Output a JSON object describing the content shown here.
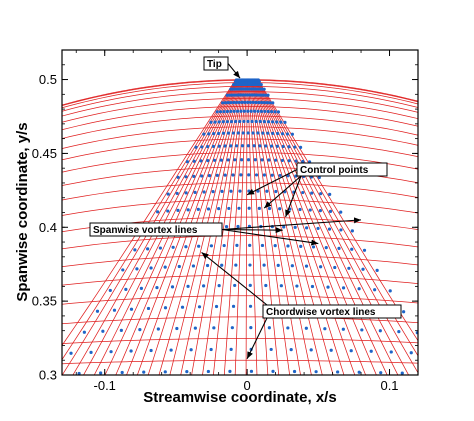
{
  "chart_data": {
    "type": "scatter",
    "xlabel": "Streamwise coordinate, x/s",
    "ylabel": "Spanwise coordinate, y/s",
    "xlim": [
      -0.13,
      0.12
    ],
    "ylim": [
      0.3,
      0.52
    ],
    "xticks": [
      -0.1,
      0,
      0.1
    ],
    "xtick_labels": [
      "-0.1",
      "0",
      "0.1"
    ],
    "yticks": [
      0.3,
      0.35,
      0.4,
      0.45,
      0.5
    ],
    "ytick_labels": [
      "0.3",
      "0.35",
      "0.4",
      "0.45",
      "0.5"
    ],
    "grid": false,
    "wing": {
      "tip_span": 0.5,
      "radius": 0.5,
      "n_chordwise_lines": 23,
      "n_spanwise_lines": 37
    },
    "colors": {
      "vortex_lines": "#e02020",
      "control_points": "#1e64c8",
      "axes": "#000000"
    },
    "annotations": [
      {
        "label": "Tip",
        "targets": [
          [
            -0.005,
            0.501
          ]
        ]
      },
      {
        "label": "Control points",
        "targets": [
          [
            0.0,
            0.422
          ],
          [
            0.012,
            0.413
          ],
          [
            0.027,
            0.407
          ]
        ]
      },
      {
        "label": "Spanwise vortex lines",
        "targets": [
          [
            0.08,
            0.405
          ],
          [
            0.05,
            0.389
          ],
          [
            0.025,
            0.398
          ]
        ]
      },
      {
        "label": "Chordwise vortex lines",
        "targets": [
          [
            -0.032,
            0.383
          ],
          [
            0.0,
            0.311
          ]
        ]
      }
    ]
  }
}
